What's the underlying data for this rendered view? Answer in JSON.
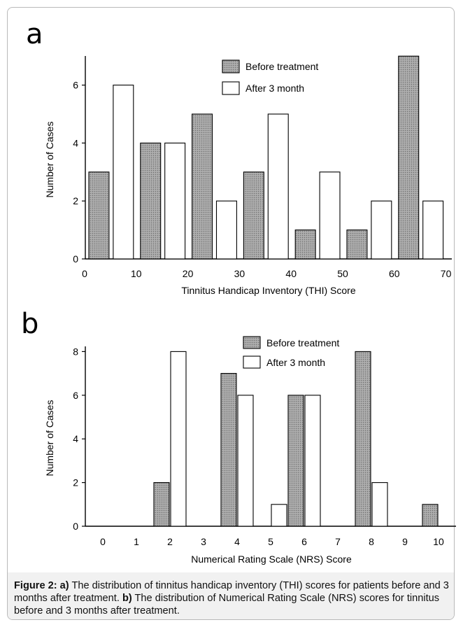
{
  "chart_data": [
    {
      "type": "bar",
      "panel_label": "a",
      "xlabel": "Tinnitus Handicap Inventory (THI) Score",
      "ylabel": "Number of Cases",
      "x_ticks": [
        0,
        10,
        20,
        30,
        40,
        50,
        60,
        70
      ],
      "y_ticks": [
        0,
        2,
        4,
        6
      ],
      "ylim": [
        0,
        7
      ],
      "xlim": [
        0,
        70
      ],
      "bins": [
        [
          0,
          10
        ],
        [
          10,
          20
        ],
        [
          20,
          30
        ],
        [
          30,
          40
        ],
        [
          40,
          50
        ],
        [
          50,
          60
        ],
        [
          60,
          70
        ]
      ],
      "series": [
        {
          "name": "Before treatment",
          "values": [
            3,
            4,
            5,
            3,
            1,
            1,
            7
          ],
          "fill": "#9a9a9a"
        },
        {
          "name": "After 3 month",
          "values": [
            6,
            4,
            2,
            5,
            3,
            2,
            2
          ],
          "fill": "#ffffff"
        }
      ],
      "legend_position": "top-right"
    },
    {
      "type": "bar",
      "panel_label": "b",
      "xlabel": "Numerical Rating Scale (NRS) Score",
      "ylabel": "Number of Cases",
      "categories": [
        "0",
        "1",
        "2",
        "3",
        "4",
        "5",
        "6",
        "7",
        "8",
        "9",
        "10"
      ],
      "y_ticks": [
        0,
        2,
        4,
        6,
        8
      ],
      "ylim": [
        0,
        8
      ],
      "series": [
        {
          "name": "Before treatment",
          "values": [
            0,
            0,
            2,
            0,
            7,
            0,
            6,
            0,
            8,
            0,
            1
          ],
          "fill": "#9a9a9a"
        },
        {
          "name": "After 3 month",
          "values": [
            0,
            0,
            8,
            0,
            6,
            1,
            6,
            0,
            2,
            0,
            0
          ],
          "fill": "#ffffff"
        }
      ],
      "legend_position": "top-center"
    }
  ],
  "caption": {
    "a_label": "Figure 2: a)",
    "a_text": " The distribution of tinnitus handicap inventory (THI) scores for patients before and 3 months after treatment. ",
    "b_label": "b)",
    "b_text": " The distribution of Numerical Rating Scale (NRS) scores for tinnitus before and 3 months after treatment."
  }
}
